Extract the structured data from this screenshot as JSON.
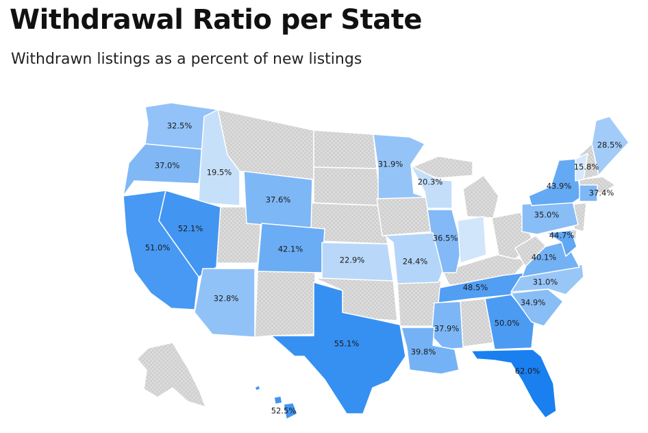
{
  "header": {
    "title": "Withdrawal Ratio per State",
    "subtitle": "Withdrawn listings as a percent of new listings"
  },
  "legend_note": "",
  "colors": {
    "scale_low": "#d6e8fb",
    "scale_high": "#1a80f0",
    "no_data": "#dcdcdc",
    "no_data_check": "#cfcfcf",
    "border": "#ffffff"
  },
  "map_data": {
    "metric": "withdrawal_ratio_percent",
    "scale_range": [
      15.8,
      62.0
    ],
    "states": [
      {
        "id": "WA",
        "label": "32.5%",
        "value": 32.5
      },
      {
        "id": "OR",
        "label": "37.0%",
        "value": 37.0
      },
      {
        "id": "ID",
        "label": "19.5%",
        "value": 19.5
      },
      {
        "id": "CA",
        "label": "51.0%",
        "value": 51.0
      },
      {
        "id": "NV",
        "label": "52.1%",
        "value": 52.1
      },
      {
        "id": "AZ",
        "label": "32.8%",
        "value": 32.8
      },
      {
        "id": "WY",
        "label": "37.6%",
        "value": 37.6
      },
      {
        "id": "CO",
        "label": "42.1%",
        "value": 42.1
      },
      {
        "id": "KS",
        "label": "22.9%",
        "value": 22.9
      },
      {
        "id": "TX",
        "label": "55.1%",
        "value": 55.1
      },
      {
        "id": "MN",
        "label": "31.9%",
        "value": 31.9
      },
      {
        "id": "WI",
        "label": "20.3%",
        "value": 20.3
      },
      {
        "id": "IL",
        "label": "36.5%",
        "value": 36.5
      },
      {
        "id": "MO",
        "label": "24.4%",
        "value": 24.4
      },
      {
        "id": "IN",
        "label": "",
        "value": 17.0
      },
      {
        "id": "TN",
        "label": "48.5%",
        "value": 48.5
      },
      {
        "id": "MS",
        "label": "37.9%",
        "value": 37.9
      },
      {
        "id": "LA",
        "label": "39.8%",
        "value": 39.8
      },
      {
        "id": "GA",
        "label": "50.0%",
        "value": 50.0
      },
      {
        "id": "FL",
        "label": "62.0%",
        "value": 62.0
      },
      {
        "id": "SC",
        "label": "34.9%",
        "value": 34.9
      },
      {
        "id": "NC",
        "label": "31.0%",
        "value": 31.0
      },
      {
        "id": "VA",
        "label": "40.1%",
        "value": 40.1
      },
      {
        "id": "MD",
        "label": "44.7%",
        "value": 44.7
      },
      {
        "id": "PA",
        "label": "35.0%",
        "value": 35.0
      },
      {
        "id": "NY",
        "label": "43.9%",
        "value": 43.9
      },
      {
        "id": "VT",
        "label": "15.8%",
        "value": 15.8
      },
      {
        "id": "ME",
        "label": "28.5%",
        "value": 28.5
      },
      {
        "id": "CT",
        "label": "37.4%",
        "value": 37.4
      },
      {
        "id": "HI",
        "label": "52.5%",
        "value": 52.5
      }
    ]
  }
}
